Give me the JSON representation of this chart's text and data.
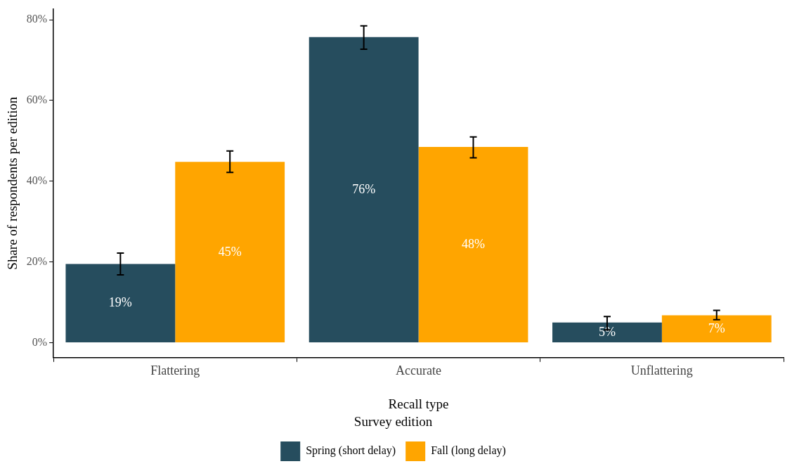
{
  "chart_data": {
    "type": "bar",
    "xlabel": "Recall type",
    "ylabel": "Share of respondents per edition",
    "legend_title": "Survey edition",
    "legend": "bottom",
    "grid": false,
    "categories": [
      "Flattering",
      "Accurate",
      "Unflattering"
    ],
    "ylim": [
      -3.7,
      82.7
    ],
    "yticks": [
      {
        "value": 0,
        "label": "0%"
      },
      {
        "value": 20,
        "label": "20%"
      },
      {
        "value": 40,
        "label": "40%"
      },
      {
        "value": 60,
        "label": "60%"
      },
      {
        "value": 80,
        "label": "80%"
      }
    ],
    "series": [
      {
        "name": "Spring (short delay)",
        "color": "#264d5e",
        "values": [
          19.5,
          75.7,
          5.0
        ],
        "errors": [
          [
            16.8,
            22.2
          ],
          [
            72.7,
            78.5
          ],
          [
            3.2,
            6.5
          ]
        ],
        "value_labels": [
          "19%",
          "76%",
          "5%"
        ]
      },
      {
        "name": "Fall (long delay)",
        "color": "#ffa500",
        "values": [
          44.8,
          48.5,
          6.8
        ],
        "errors": [
          [
            42.2,
            47.5
          ],
          [
            45.8,
            51.0
          ],
          [
            5.7,
            8.0
          ]
        ],
        "value_labels": [
          "45%",
          "48%",
          "7%"
        ]
      }
    ]
  }
}
